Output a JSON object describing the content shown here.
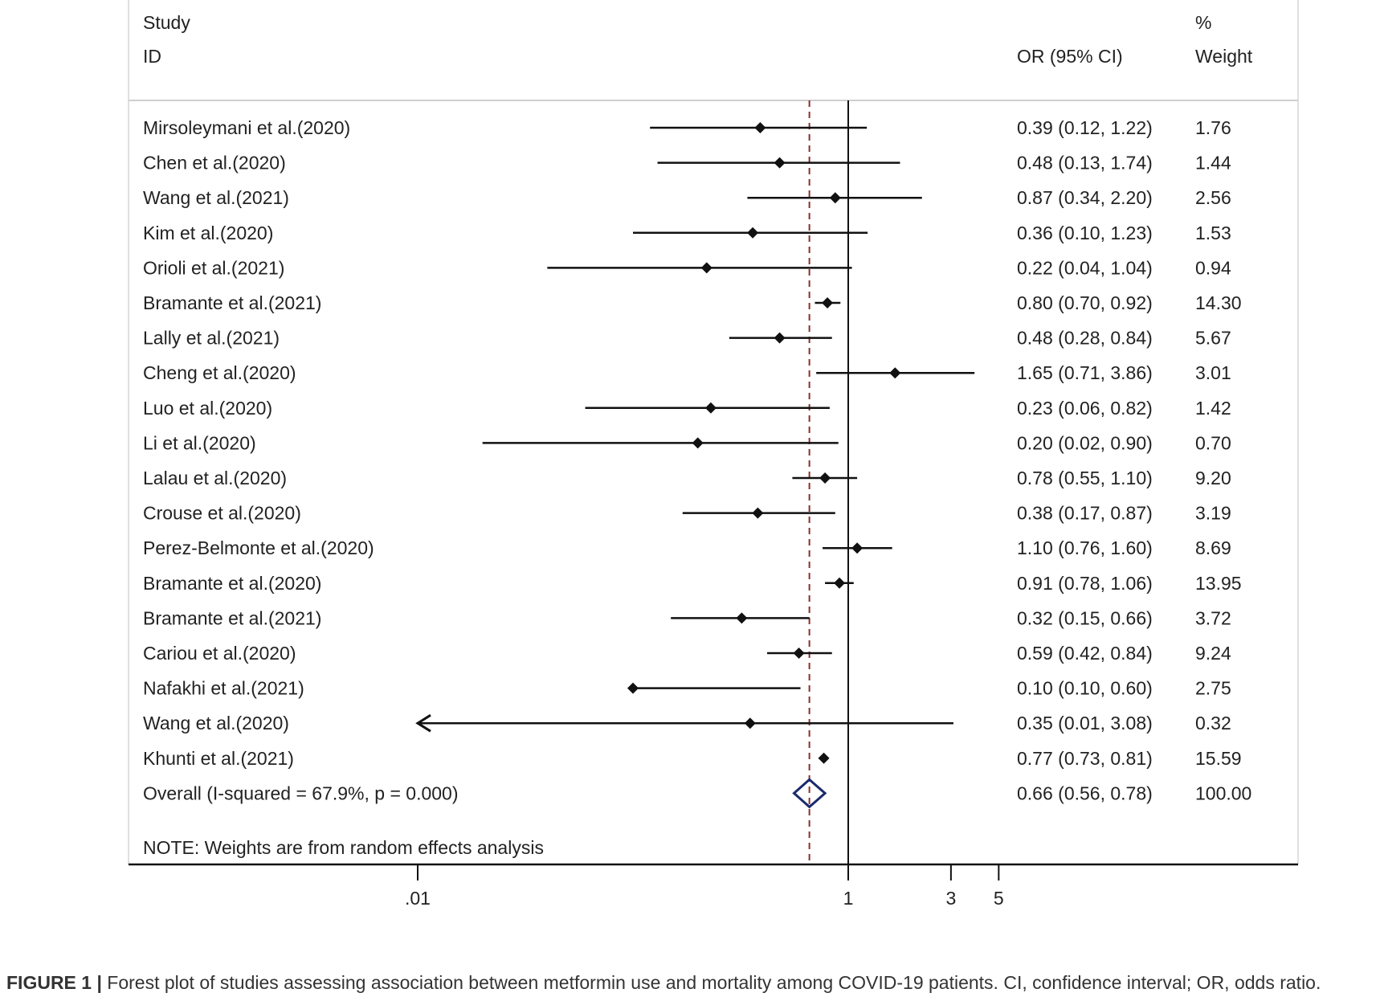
{
  "chart_data": {
    "type": "forest",
    "x_scale": "log",
    "x_ticks": [
      ".01",
      "1",
      "3",
      "5"
    ],
    "x_tick_values": [
      0.01,
      1,
      3,
      5
    ],
    "null_line": 1,
    "overall_line": 0.66,
    "header": {
      "study_line1": "Study",
      "study_line2": "ID",
      "or_label": "OR (95% CI)",
      "weight_line1": "%",
      "weight_line2": "Weight"
    },
    "studies": [
      {
        "id": "Mirsoleymani et al.(2020)",
        "or": 0.39,
        "lo": 0.12,
        "hi": 1.22,
        "or_text": "0.39 (0.12, 1.22)",
        "weight": "1.76"
      },
      {
        "id": "Chen et al.(2020)",
        "or": 0.48,
        "lo": 0.13,
        "hi": 1.74,
        "or_text": "0.48 (0.13, 1.74)",
        "weight": "1.44"
      },
      {
        "id": "Wang et al.(2021)",
        "or": 0.87,
        "lo": 0.34,
        "hi": 2.2,
        "or_text": "0.87 (0.34, 2.20)",
        "weight": "2.56"
      },
      {
        "id": "Kim et al.(2020)",
        "or": 0.36,
        "lo": 0.1,
        "hi": 1.23,
        "or_text": "0.36 (0.10, 1.23)",
        "weight": "1.53"
      },
      {
        "id": "Orioli et al.(2021)",
        "or": 0.22,
        "lo": 0.04,
        "hi": 1.04,
        "or_text": "0.22 (0.04, 1.04)",
        "weight": "0.94"
      },
      {
        "id": "Bramante et al.(2021)",
        "or": 0.8,
        "lo": 0.7,
        "hi": 0.92,
        "or_text": "0.80 (0.70, 0.92)",
        "weight": "14.30"
      },
      {
        "id": "Lally et al.(2021)",
        "or": 0.48,
        "lo": 0.28,
        "hi": 0.84,
        "or_text": "0.48 (0.28, 0.84)",
        "weight": "5.67"
      },
      {
        "id": "Cheng et al.(2020)",
        "or": 1.65,
        "lo": 0.71,
        "hi": 3.86,
        "or_text": "1.65 (0.71, 3.86)",
        "weight": "3.01"
      },
      {
        "id": "Luo et al.(2020)",
        "or": 0.23,
        "lo": 0.06,
        "hi": 0.82,
        "or_text": "0.23 (0.06, 0.82)",
        "weight": "1.42"
      },
      {
        "id": "Li et al.(2020)",
        "or": 0.2,
        "lo": 0.02,
        "hi": 0.9,
        "or_text": "0.20 (0.02, 0.90)",
        "weight": "0.70"
      },
      {
        "id": "Lalau et al.(2020)",
        "or": 0.78,
        "lo": 0.55,
        "hi": 1.1,
        "or_text": "0.78 (0.55, 1.10)",
        "weight": "9.20"
      },
      {
        "id": "Crouse et al.(2020)",
        "or": 0.38,
        "lo": 0.17,
        "hi": 0.87,
        "or_text": "0.38 (0.17, 0.87)",
        "weight": "3.19"
      },
      {
        "id": "Perez-Belmonte et al.(2020)",
        "or": 1.1,
        "lo": 0.76,
        "hi": 1.6,
        "or_text": "1.10 (0.76, 1.60)",
        "weight": "8.69"
      },
      {
        "id": "Bramante et al.(2020)",
        "or": 0.91,
        "lo": 0.78,
        "hi": 1.06,
        "or_text": "0.91 (0.78, 1.06)",
        "weight": "13.95"
      },
      {
        "id": "Bramante et al.(2021)",
        "or": 0.32,
        "lo": 0.15,
        "hi": 0.66,
        "or_text": "0.32 (0.15, 0.66)",
        "weight": "3.72"
      },
      {
        "id": "Cariou et al.(2020)",
        "or": 0.59,
        "lo": 0.42,
        "hi": 0.84,
        "or_text": "0.59 (0.42, 0.84)",
        "weight": "9.24"
      },
      {
        "id": "Nafakhi et al.(2021)",
        "or": 0.1,
        "lo": 0.1,
        "hi": 0.6,
        "or_text": "0.10 (0.10, 0.60)",
        "weight": "2.75"
      },
      {
        "id": "Wang et al.(2020)",
        "or": 0.35,
        "lo": 0.01,
        "hi": 3.08,
        "or_text": "0.35 (0.01, 3.08)",
        "weight": "0.32",
        "truncated_low": true
      },
      {
        "id": "Khunti et al.(2021)",
        "or": 0.77,
        "lo": 0.73,
        "hi": 0.81,
        "or_text": "0.77 (0.73, 0.81)",
        "weight": "15.59"
      }
    ],
    "overall": {
      "label": "Overall  (I-squared = 67.9%, p = 0.000)",
      "or": 0.66,
      "lo": 0.56,
      "hi": 0.78,
      "or_text": "0.66 (0.56, 0.78)",
      "weight": "100.00"
    },
    "note": "NOTE: Weights are from random effects analysis",
    "colors": {
      "line": "#111111",
      "overall_diamond": "#1a2a6c",
      "overall_line": "#8b2e2e",
      "panel_border": "#cfcfcf"
    }
  },
  "caption": {
    "label": "FIGURE 1 |",
    "text": " Forest plot of studies assessing association between metformin use and mortality among COVID-19 patients. CI, confidence interval; OR, odds ratio."
  }
}
